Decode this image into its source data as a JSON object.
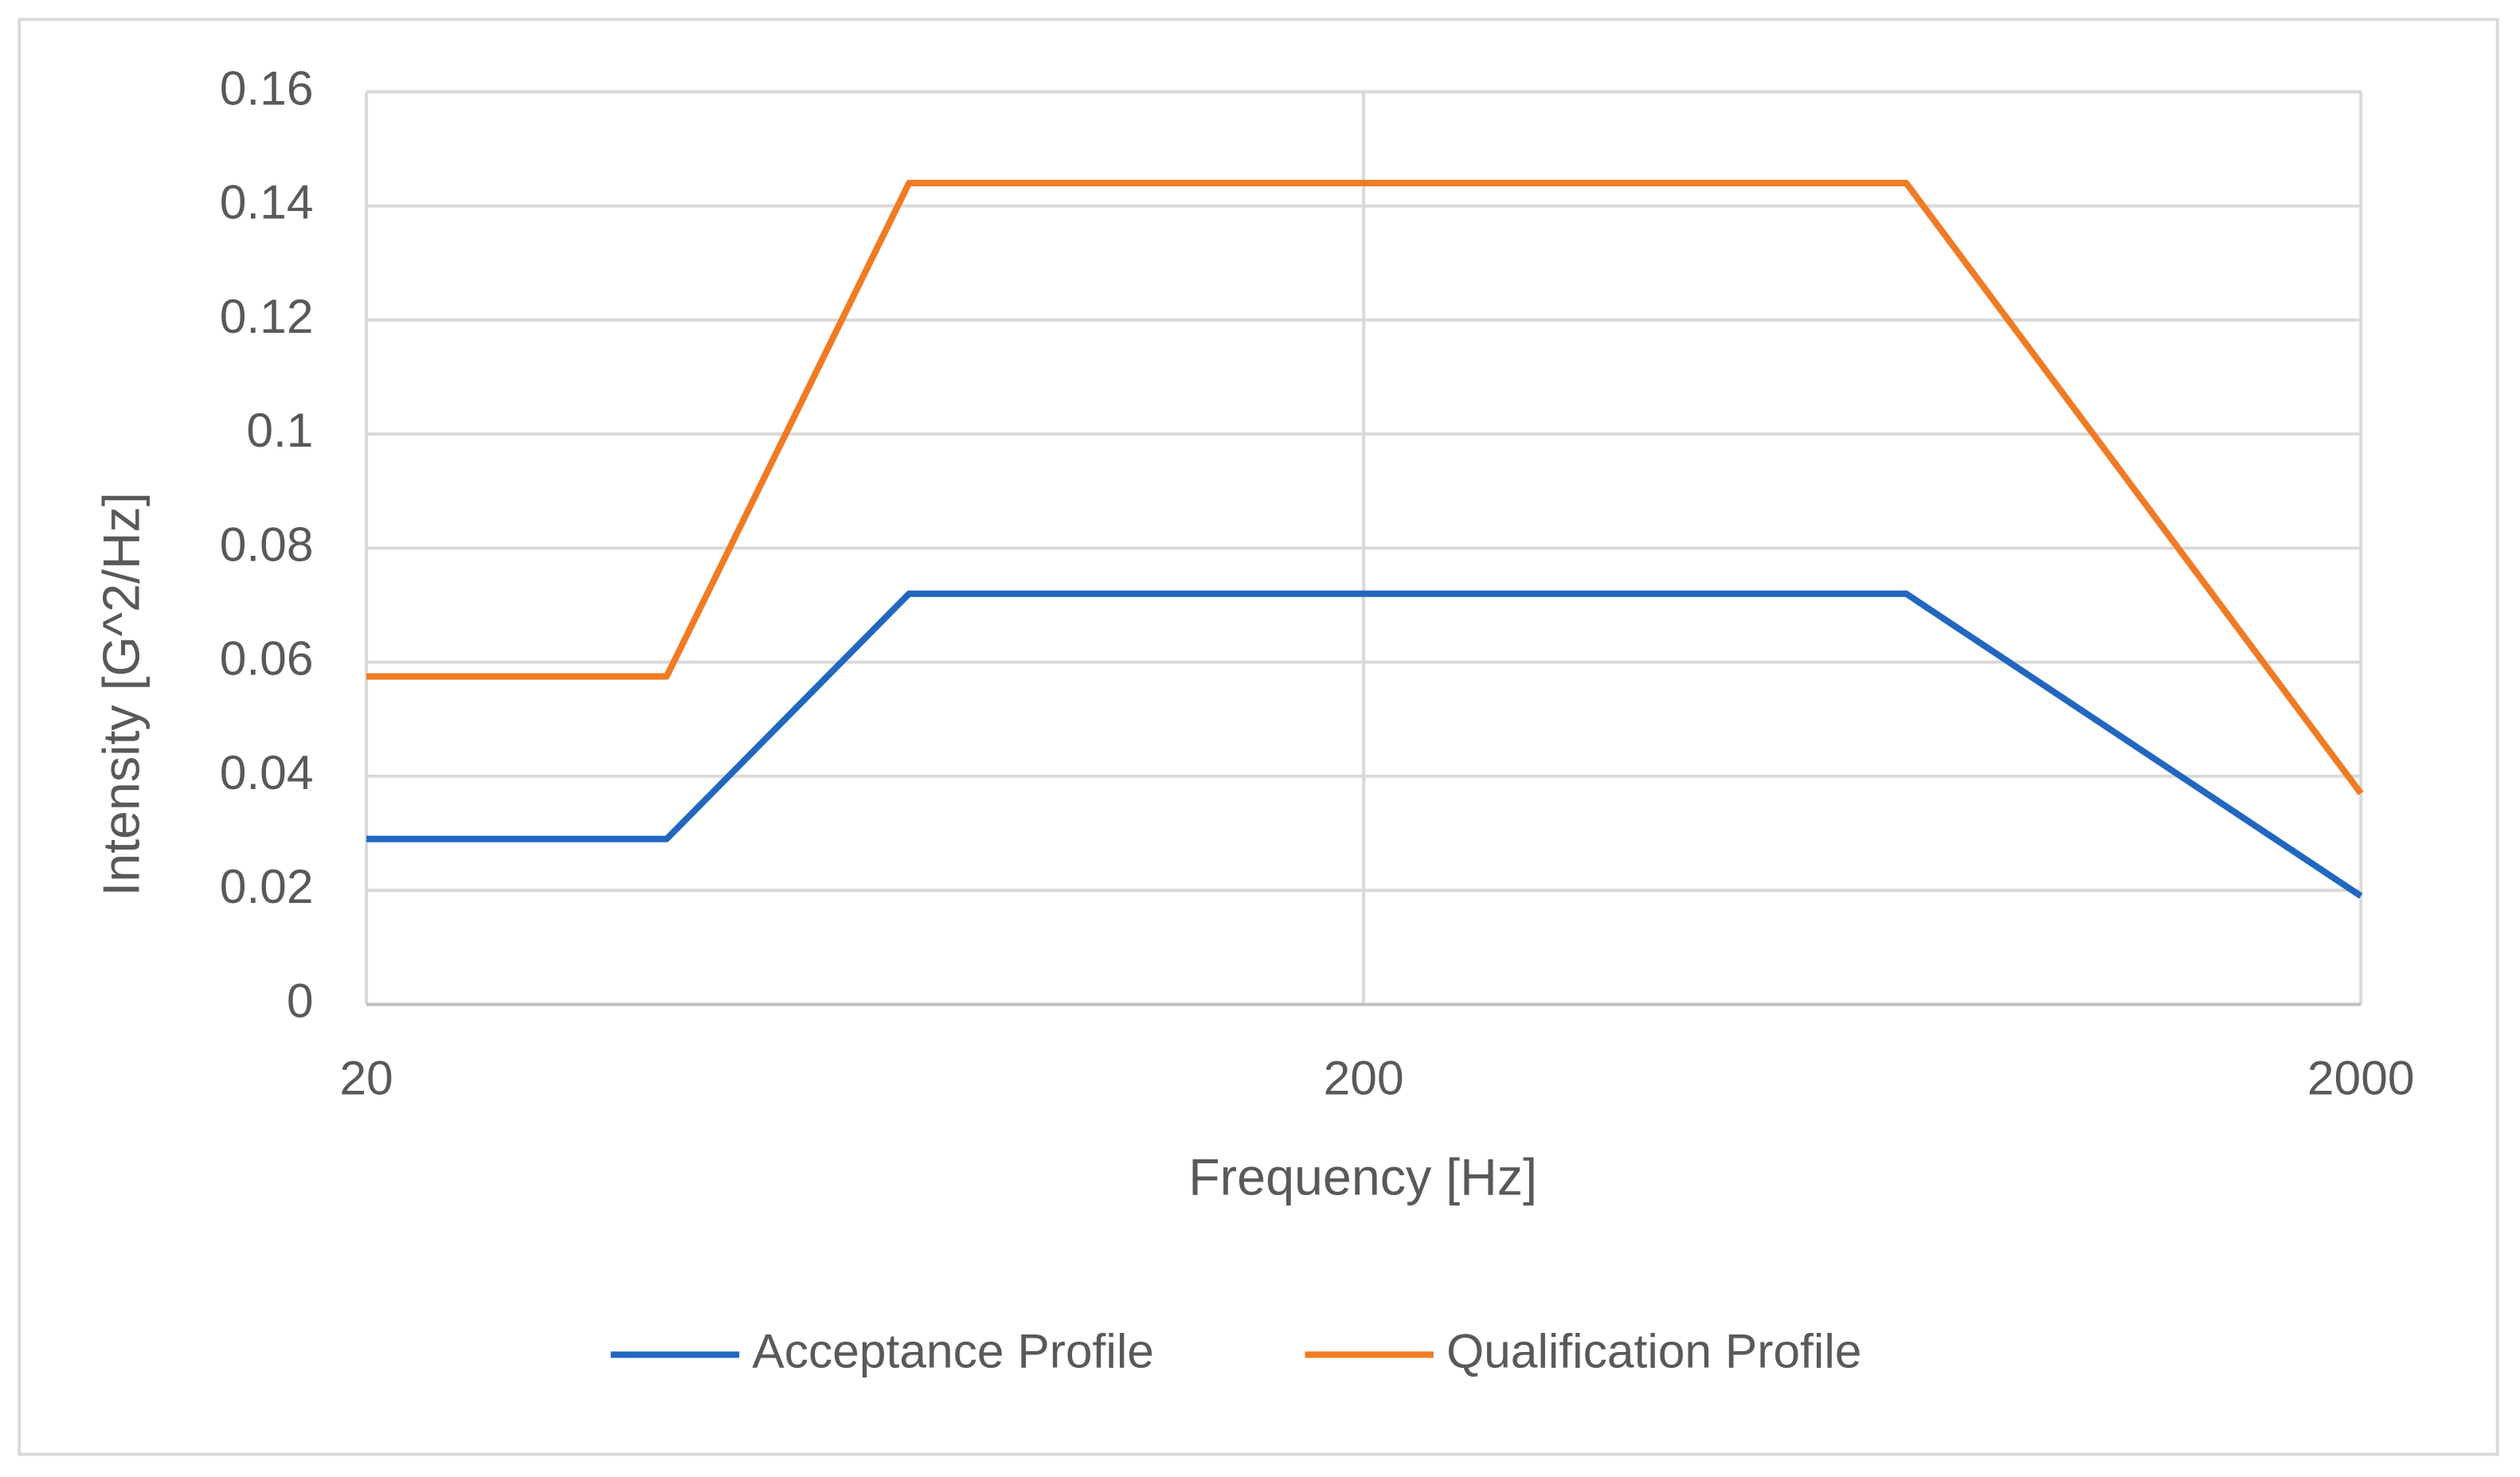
{
  "chart_data": {
    "type": "line",
    "x_label": "Frequency [Hz]",
    "y_label": "Intensity [G^2/Hz]",
    "x": [
      20,
      40,
      70,
      700,
      2000
    ],
    "series": [
      {
        "name": "Acceptance Profile",
        "color": "#2167c0",
        "values": [
          0.029,
          0.029,
          0.072,
          0.072,
          0.019
        ]
      },
      {
        "name": "Qualification Profile",
        "color": "#f07b24",
        "values": [
          0.0575,
          0.0575,
          0.144,
          0.144,
          0.037
        ]
      }
    ],
    "xlim": [
      20,
      2000
    ],
    "xticks": [
      20,
      200,
      2000
    ],
    "xlog": true,
    "ylim": [
      0,
      0.16
    ],
    "yticks": [
      0,
      0.02,
      0.04,
      0.06,
      0.08,
      0.1,
      0.12,
      0.14,
      0.16
    ],
    "grid": true,
    "legend": "bottom"
  }
}
